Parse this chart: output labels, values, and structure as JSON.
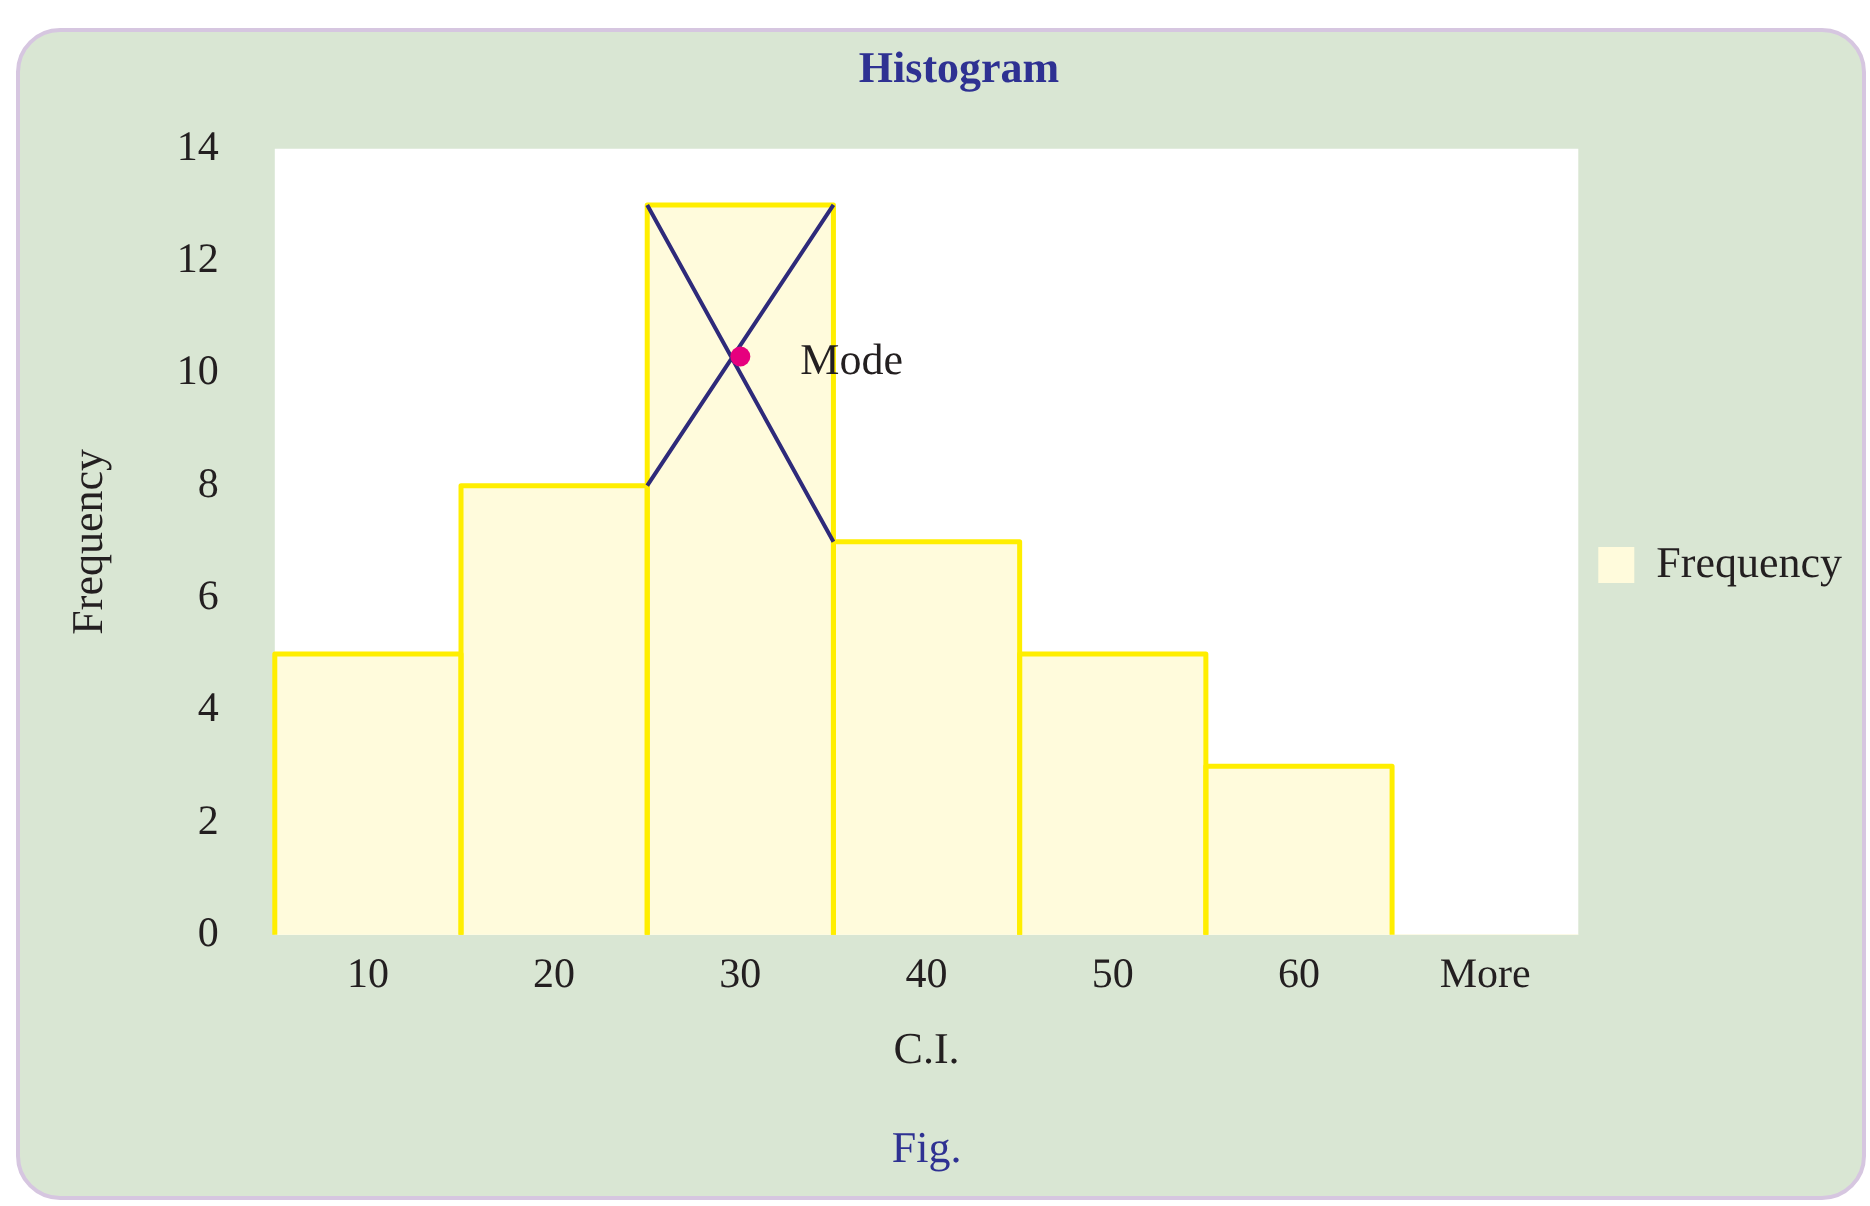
{
  "chart_data": {
    "type": "bar",
    "title": "Histogram",
    "xlabel": "C.I.",
    "ylabel": "Frequency",
    "categories": [
      "10",
      "20",
      "30",
      "40",
      "50",
      "60",
      "More"
    ],
    "series": [
      {
        "name": "Frequency",
        "color": "#fffbdc",
        "values": [
          5,
          8,
          13,
          7,
          5,
          3,
          0
        ]
      }
    ],
    "ylim": [
      0,
      14
    ],
    "yticks": [
      0,
      2,
      4,
      6,
      8,
      10,
      12,
      14
    ],
    "grid": false,
    "legend": "right",
    "annotations": [
      {
        "text": "Mode",
        "x": "30",
        "y": 10.3
      },
      "Fig."
    ]
  }
}
